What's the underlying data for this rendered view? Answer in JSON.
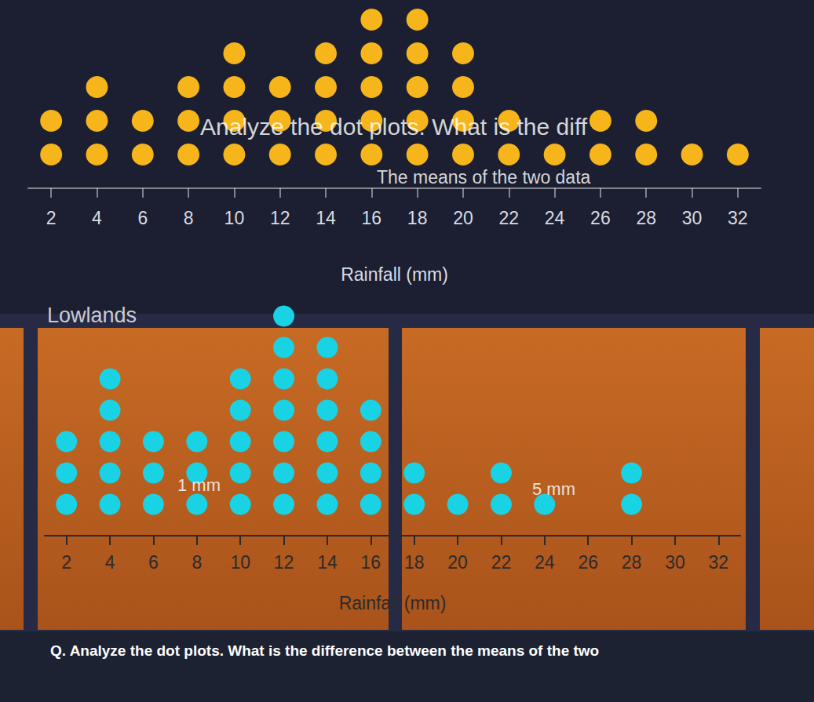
{
  "chart_data": [
    {
      "type": "dot",
      "x_label": "Rainfall (mm)",
      "x": [
        2,
        4,
        6,
        8,
        10,
        12,
        14,
        16,
        18,
        20,
        22,
        24,
        26,
        28,
        30,
        32
      ],
      "values": [
        2,
        3,
        2,
        3,
        4,
        3,
        4,
        5,
        5,
        4,
        2,
        1,
        2,
        2,
        1,
        1
      ],
      "color": "#f7b51c",
      "xlim": [
        1,
        33
      ],
      "xticks": [
        2,
        4,
        6,
        8,
        10,
        12,
        14,
        16,
        18,
        20,
        22,
        24,
        26,
        28,
        30,
        32
      ],
      "annotations": [
        "Analyze the dot plots. What is the diff",
        "The means of the two data"
      ]
    },
    {
      "type": "dot",
      "title": "Lowlands",
      "x_label": "Rainfall (mm)",
      "x": [
        2,
        4,
        6,
        8,
        10,
        12,
        14,
        16,
        18,
        20,
        22,
        24,
        26,
        28,
        30,
        32
      ],
      "values": [
        3,
        5,
        3,
        3,
        5,
        7,
        6,
        4,
        2,
        1,
        2,
        1,
        0,
        2,
        0,
        0
      ],
      "color": "#19d2e4",
      "xlim": [
        1,
        33
      ],
      "xticks": [
        2,
        4,
        6,
        8,
        10,
        12,
        14,
        16,
        18,
        20,
        22,
        24,
        26,
        28,
        30,
        32
      ],
      "annotations": [
        "1 mm",
        "5 mm"
      ]
    }
  ],
  "question": "Q. Analyze the dot plots. What is the difference between the means of the two"
}
